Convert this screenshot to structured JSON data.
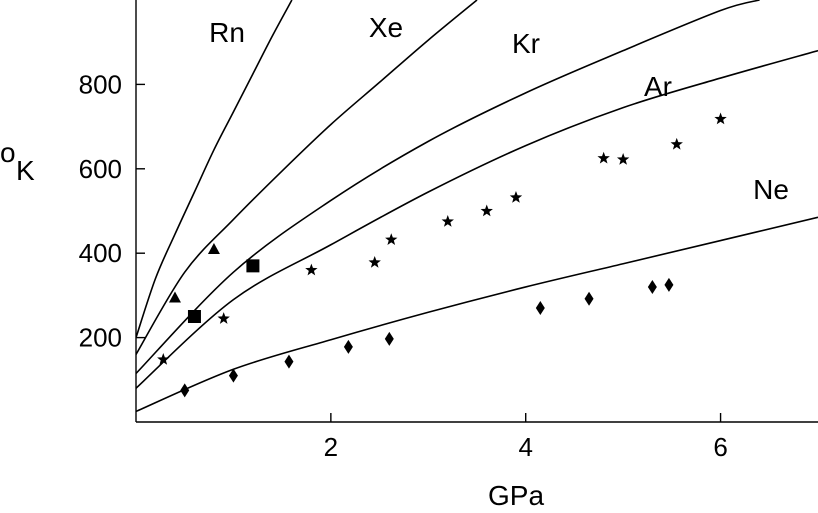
{
  "chart_data": {
    "type": "line",
    "title": "",
    "xlabel": "GPa",
    "ylabel": "K",
    "ylabel_superscript": "o",
    "xlim": [
      0,
      7
    ],
    "ylim": [
      0,
      1000
    ],
    "xticks": [
      2,
      4,
      6
    ],
    "yticks": [
      200,
      400,
      600,
      800
    ],
    "grid": false,
    "legend": "none",
    "curves": [
      {
        "label": "Rn",
        "x": [
          0,
          0.2,
          0.4,
          0.6,
          0.8,
          1.0,
          1.2,
          1.4,
          1.6
        ],
        "y": [
          200,
          340,
          445,
          545,
          645,
          735,
          825,
          915,
          1000
        ]
      },
      {
        "label": "Xe",
        "x": [
          0,
          0.5,
          1,
          1.5,
          2,
          2.5,
          3,
          3.5
        ],
        "y": [
          160,
          355,
          480,
          595,
          705,
          805,
          905,
          1000
        ]
      },
      {
        "label": "Kr",
        "x": [
          0,
          1,
          2,
          3,
          4,
          5,
          6,
          6.4
        ],
        "y": [
          115,
          355,
          525,
          665,
          780,
          880,
          975,
          1000
        ]
      },
      {
        "label": "Ar",
        "x": [
          0,
          1,
          2,
          3,
          4,
          5,
          6,
          7
        ],
        "y": [
          80,
          290,
          420,
          545,
          655,
          745,
          815,
          880
        ]
      },
      {
        "label": "Ne",
        "x": [
          0,
          1,
          2,
          3,
          4,
          5,
          6,
          7
        ],
        "y": [
          25,
          125,
          195,
          260,
          320,
          375,
          430,
          485
        ]
      }
    ],
    "points": [
      {
        "marker": "triangle",
        "x": [
          0.4,
          0.8
        ],
        "y": [
          295,
          410
        ]
      },
      {
        "marker": "square",
        "x": [
          0.6,
          1.2
        ],
        "y": [
          250,
          370
        ]
      },
      {
        "marker": "star",
        "x": [
          0.28,
          0.9,
          1.8,
          2.45,
          2.62,
          3.2,
          3.6,
          3.9,
          4.8,
          5.0,
          5.55,
          6.0
        ],
        "y": [
          148,
          245,
          360,
          378,
          432,
          475,
          500,
          532,
          625,
          622,
          658,
          718
        ]
      },
      {
        "marker": "diamond",
        "x": [
          0.5,
          1.0,
          1.57,
          2.18,
          2.6,
          4.15,
          4.65,
          5.3,
          5.47
        ],
        "y": [
          75,
          110,
          143,
          178,
          197,
          270,
          292,
          320,
          325
        ]
      }
    ]
  }
}
